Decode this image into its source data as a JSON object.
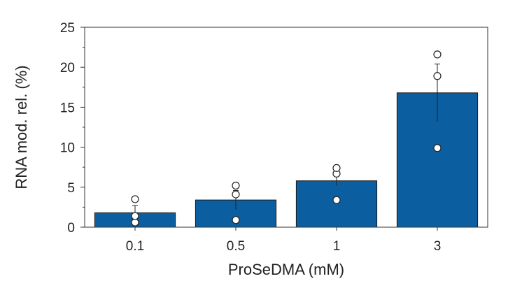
{
  "chart_data": {
    "type": "bar",
    "categories": [
      "0.1",
      "0.5",
      "1",
      "3"
    ],
    "values": [
      1.8,
      3.4,
      5.8,
      16.8
    ],
    "errors": [
      0.9,
      1.2,
      0.6,
      3.6
    ],
    "points": [
      [
        0.6,
        1.4,
        3.5
      ],
      [
        0.9,
        4.1,
        5.2
      ],
      [
        3.4,
        6.7,
        7.4
      ],
      [
        9.9,
        18.9,
        21.6
      ]
    ],
    "xlabel": "ProSeDMA (mM)",
    "ylabel": "RNA mod. rel. (%)",
    "ylim": [
      0,
      25
    ],
    "yticks": [
      "0",
      "5",
      "10",
      "15",
      "20",
      "25"
    ],
    "bar_color": "#0b5fa0",
    "grid": false
  }
}
